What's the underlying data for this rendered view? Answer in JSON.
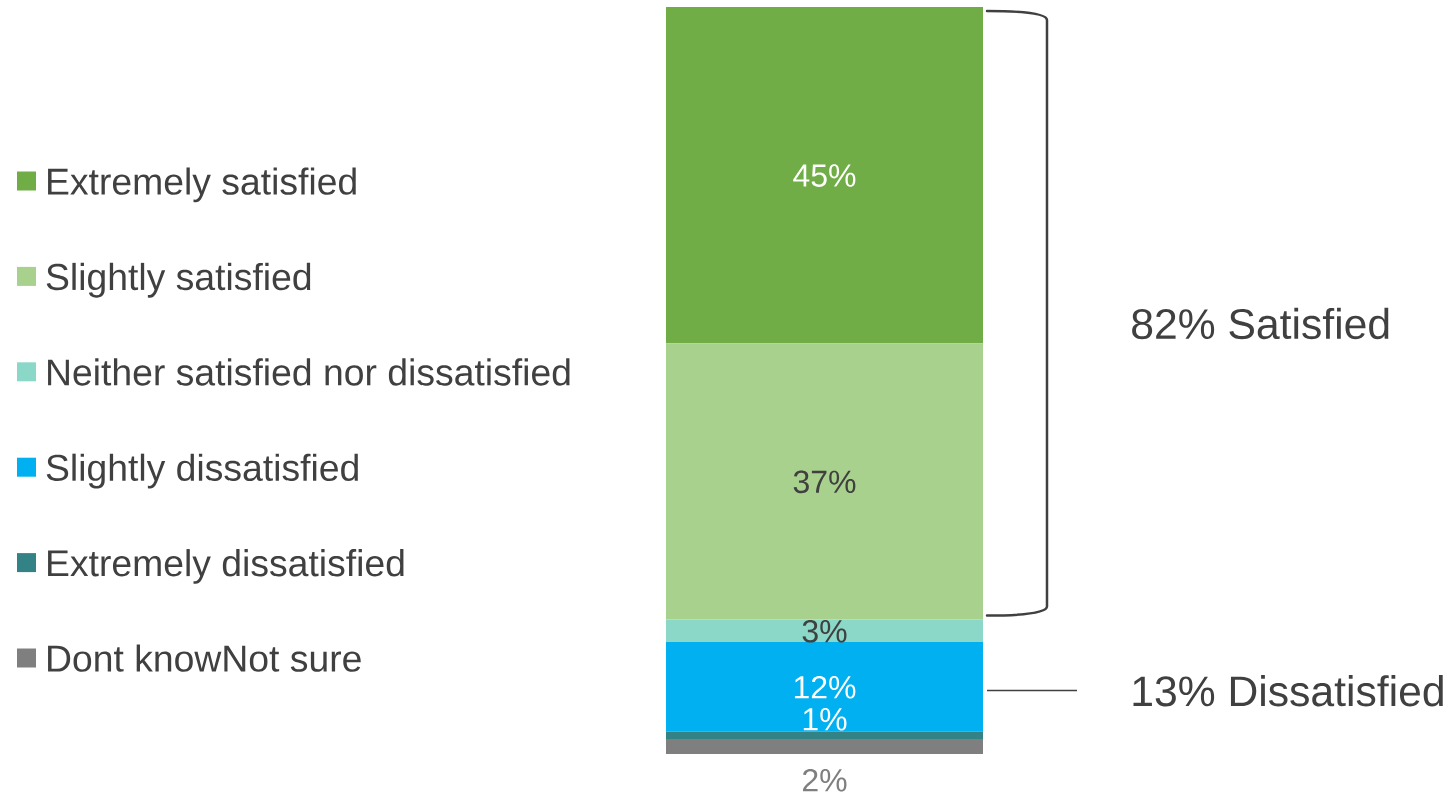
{
  "chart_data": {
    "type": "bar",
    "stacked": true,
    "categories": [
      null
    ],
    "series": [
      {
        "name": "Dont knowNot sure",
        "color": "#7f7f7f",
        "values": [
          2
        ],
        "value_labels": [
          "2%"
        ]
      },
      {
        "name": "Extremely dissatisfied",
        "color": "#338286",
        "values": [
          1
        ],
        "value_labels": [
          "1%"
        ]
      },
      {
        "name": "Slightly dissatisfied",
        "color": "#00b0f0",
        "values": [
          12
        ],
        "value_labels": [
          "12%"
        ]
      },
      {
        "name": "Neither satisfied nor dissatisfied",
        "color": "#8bd8c9",
        "values": [
          3
        ],
        "value_labels": [
          "3%"
        ]
      },
      {
        "name": "Slightly satisfied",
        "color": "#a9d18e",
        "values": [
          37
        ],
        "value_labels": [
          "37%"
        ]
      },
      {
        "name": "Extremely satisfied",
        "color": "#70ad47",
        "values": [
          45
        ],
        "value_labels": [
          "45%"
        ]
      }
    ],
    "legend": "left",
    "annotations": [
      "82% Satisfied",
      "13% Dissatisfied"
    ]
  }
}
